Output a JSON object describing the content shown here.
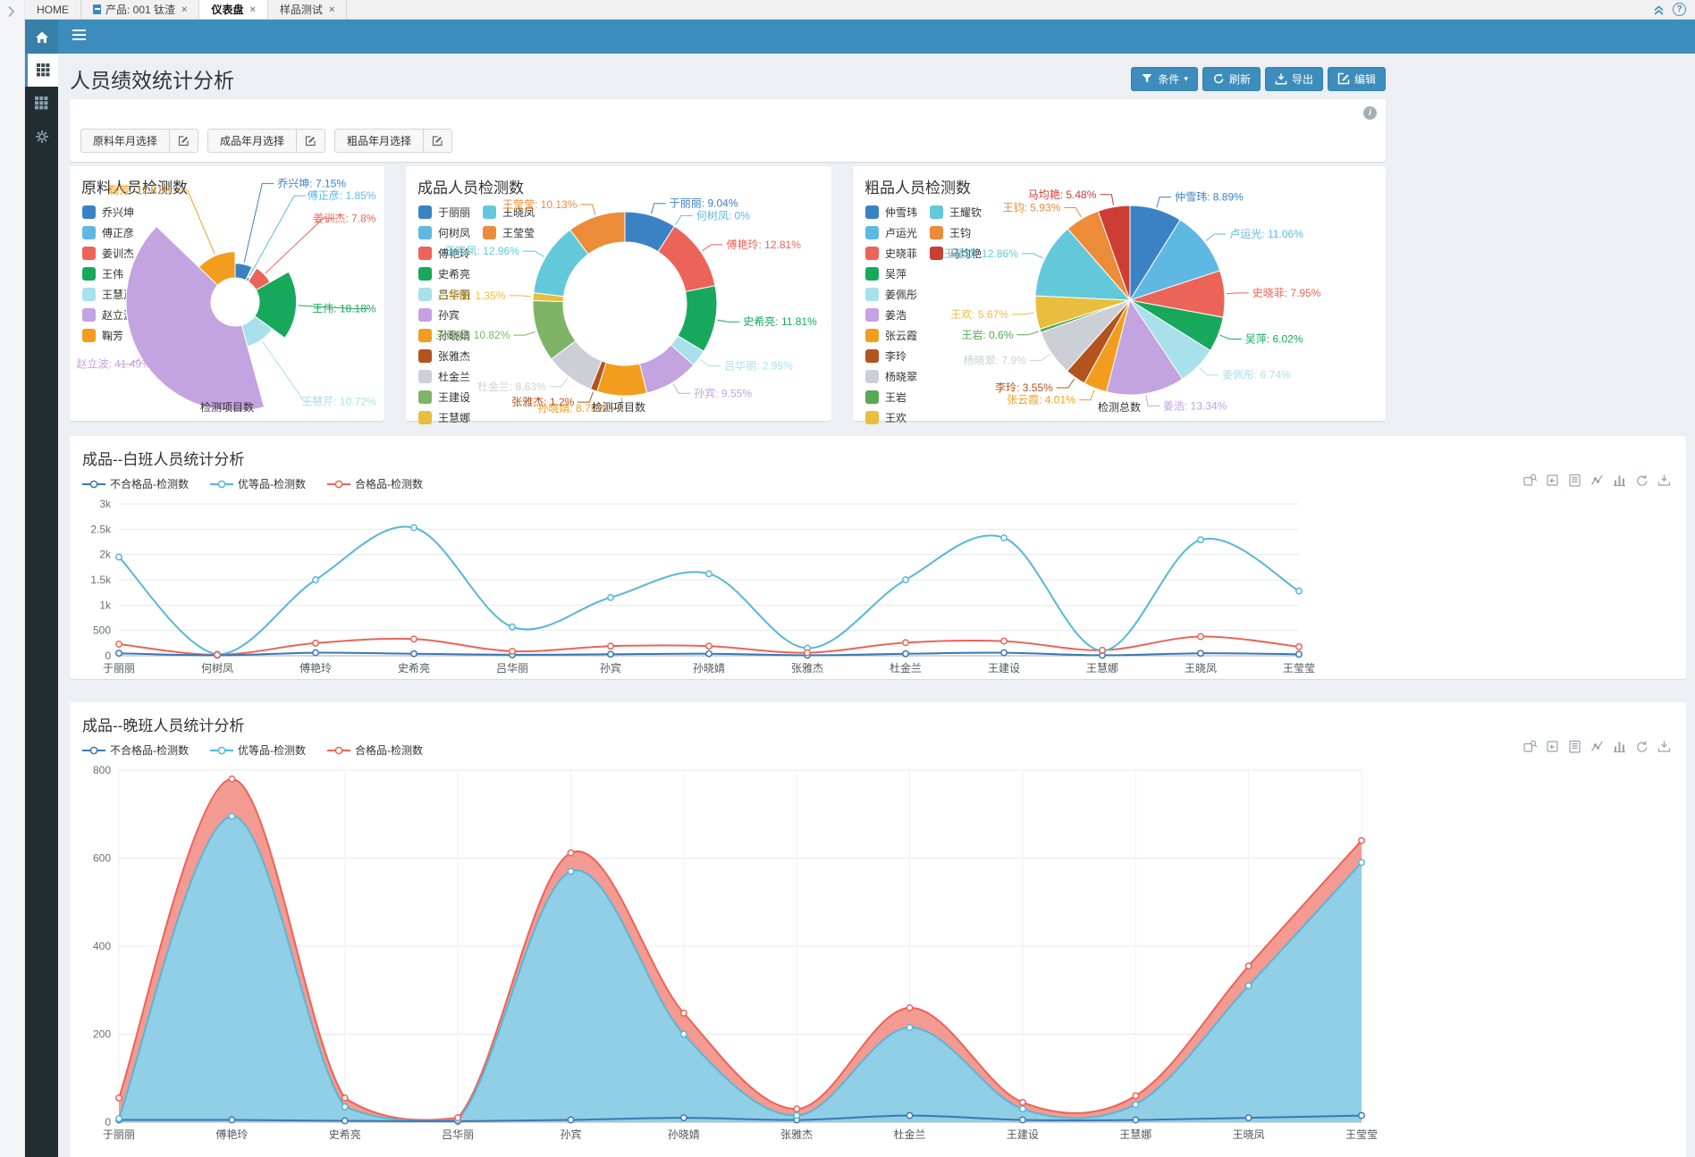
{
  "colors": {
    "accent": "#3c8dbc",
    "header_dark": "#367fa9",
    "sidebar_bg": "#222d32",
    "content_bg": "#ecf0f5"
  },
  "tab_bar": {
    "tabs": [
      {
        "label": "HOME",
        "active": false,
        "closable": false,
        "product_icon": false
      },
      {
        "label": "产品: 001 钛渣",
        "active": false,
        "closable": true,
        "product_icon": true
      },
      {
        "label": "仪表盘",
        "active": true,
        "closable": true,
        "product_icon": false
      },
      {
        "label": "样品测试",
        "active": false,
        "closable": true,
        "product_icon": false
      }
    ],
    "close_glyph": "×",
    "help_glyph": "?"
  },
  "sidebar": {
    "items": [
      {
        "icon": "grid",
        "active": true
      },
      {
        "icon": "grid",
        "active": false
      },
      {
        "icon": "gear",
        "active": false
      }
    ]
  },
  "page": {
    "title": "人员绩效统计分析",
    "actions": [
      {
        "label": "条件",
        "icon": "funnel",
        "caret": "▾",
        "name": "condition-button"
      },
      {
        "label": "刷新",
        "icon": "refresh",
        "name": "refresh-button"
      },
      {
        "label": "导出",
        "icon": "download",
        "name": "export-button"
      },
      {
        "label": "编辑",
        "icon": "edit",
        "name": "edit-button"
      }
    ]
  },
  "filters": {
    "buttons": [
      "原料年月选择",
      "成品年月选择",
      "粗品年月选择"
    ]
  },
  "toolbox_icons": [
    "data-zoom",
    "zoom-reset",
    "data-view",
    "line-type",
    "bar-type",
    "restore",
    "save-image"
  ],
  "chart_data": [
    {
      "type": "pie",
      "variant": "rose",
      "title": "原料人员检测数",
      "axis_label": "检测项目数",
      "series": [
        {
          "name": "乔兴坤",
          "pct": 7.15,
          "color": "#3b82c4"
        },
        {
          "name": "傅正彦",
          "pct": 1.85,
          "color": "#5fb8e2"
        },
        {
          "name": "姜训杰",
          "pct": 7.8,
          "color": "#ec6358"
        },
        {
          "name": "王伟",
          "pct": 18.18,
          "color": "#18a85c"
        },
        {
          "name": "王慧芹",
          "pct": 10.72,
          "color": "#a8e0ec"
        },
        {
          "name": "赵立波",
          "pct": 41.49,
          "color": "#c3a3e0"
        },
        {
          "name": "鞠芳",
          "pct": 12.81,
          "color": "#f29d1e"
        }
      ]
    },
    {
      "type": "pie",
      "variant": "donut",
      "title": "成品人员检测数",
      "axis_label": "检测项目数",
      "series": [
        {
          "name": "于丽丽",
          "pct": 9.04,
          "color": "#3b82c4"
        },
        {
          "name": "何树凤",
          "pct": 0,
          "color": "#5fb8e2"
        },
        {
          "name": "傅艳玲",
          "pct": 12.81,
          "color": "#ec6358"
        },
        {
          "name": "史希亮",
          "pct": 11.81,
          "color": "#18a85c"
        },
        {
          "name": "吕华丽",
          "pct": 2.95,
          "color": "#a8e0ec"
        },
        {
          "name": "孙宾",
          "pct": 9.55,
          "color": "#c3a3e0"
        },
        {
          "name": "孙晓婧",
          "pct": 8.75,
          "color": "#f29d1e"
        },
        {
          "name": "张雅杰",
          "pct": 1.2,
          "color": "#b3531e"
        },
        {
          "name": "杜金兰",
          "pct": 8.63,
          "color": "#ccd0d6"
        },
        {
          "name": "王建设",
          "pct": 10.82,
          "color": "#7fb466"
        },
        {
          "name": "王慧娜",
          "pct": 1.35,
          "color": "#e9bd3e"
        },
        {
          "name": "王晓凤",
          "pct": 12.96,
          "color": "#62c8da"
        },
        {
          "name": "王莹莹",
          "pct": 10.13,
          "color": "#ec8b38"
        }
      ]
    },
    {
      "type": "pie",
      "variant": "pie",
      "title": "粗品人员检测数",
      "axis_label": "检测总数",
      "series": [
        {
          "name": "仲雪玮",
          "pct": 8.89,
          "color": "#3b82c4"
        },
        {
          "name": "卢运光",
          "pct": 11.06,
          "color": "#5fb8e2"
        },
        {
          "name": "史晓菲",
          "pct": 7.95,
          "color": "#ec6358"
        },
        {
          "name": "吴萍",
          "pct": 6.02,
          "color": "#18a85c"
        },
        {
          "name": "姜佩彤",
          "pct": 6.74,
          "color": "#a8e0ec"
        },
        {
          "name": "姜浩",
          "pct": 13.34,
          "color": "#c3a3e0"
        },
        {
          "name": "张云霞",
          "pct": 4.01,
          "color": "#f29d1e"
        },
        {
          "name": "李玲",
          "pct": 3.55,
          "color": "#b3531e"
        },
        {
          "name": "杨晓翠",
          "pct": 7.9,
          "color": "#ccd0d6"
        },
        {
          "name": "王岩",
          "pct": 0.6,
          "color": "#55a855"
        },
        {
          "name": "王欢",
          "pct": 5.67,
          "color": "#e9bd3e"
        },
        {
          "name": "王耀钦",
          "pct": 12.86,
          "color": "#62c8da"
        },
        {
          "name": "王钧",
          "pct": 5.93,
          "color": "#ec8b38"
        },
        {
          "name": "马均艳",
          "pct": 5.48,
          "color": "#cc3e33"
        }
      ]
    },
    {
      "type": "line",
      "title": "成品--白班人员统计分析",
      "categories": [
        "于丽丽",
        "何树凤",
        "傅艳玲",
        "史希亮",
        "吕华丽",
        "孙宾",
        "孙晓婧",
        "张雅杰",
        "杜金兰",
        "王建设",
        "王慧娜",
        "王晓凤",
        "王莹莹"
      ],
      "series": [
        {
          "name": "不合格品-检测数",
          "color": "#3a78b5",
          "fill": null,
          "values": [
            50,
            10,
            60,
            40,
            20,
            30,
            40,
            10,
            40,
            60,
            10,
            50,
            30
          ]
        },
        {
          "name": "优等品-检测数",
          "color": "#56b7d8",
          "fill": null,
          "values": [
            1950,
            30,
            1500,
            2530,
            570,
            1150,
            1620,
            150,
            1500,
            2330,
            100,
            2290,
            1280
          ]
        },
        {
          "name": "合格品-检测数",
          "color": "#ec6358",
          "fill": null,
          "values": [
            230,
            20,
            250,
            330,
            90,
            190,
            190,
            60,
            260,
            290,
            110,
            380,
            180
          ]
        }
      ],
      "ylim": [
        0,
        3000
      ],
      "yticks": [
        "0",
        "500",
        "1k",
        "1.5k",
        "2k",
        "2.5k",
        "3k"
      ]
    },
    {
      "type": "area",
      "title": "成品--晚班人员统计分析",
      "categories": [
        "于丽丽",
        "傅艳玲",
        "史希亮",
        "吕华丽",
        "孙宾",
        "孙晓婧",
        "张雅杰",
        "杜金兰",
        "王建设",
        "王慧娜",
        "王晓凤",
        "王莹莹"
      ],
      "series": [
        {
          "name": "不合格品-检测数",
          "color": "#3a78b5",
          "fill": null,
          "values": [
            5,
            5,
            3,
            2,
            5,
            10,
            5,
            15,
            5,
            5,
            10,
            15
          ]
        },
        {
          "name": "优等品-检测数",
          "color": "#56b7d8",
          "fill": "#8ad2ea",
          "values": [
            8,
            695,
            35,
            5,
            570,
            200,
            15,
            215,
            30,
            40,
            310,
            590
          ]
        },
        {
          "name": "合格品-检测数",
          "color": "#ec6358",
          "fill": "#f2958c",
          "values": [
            55,
            780,
            55,
            10,
            612,
            248,
            30,
            260,
            45,
            60,
            355,
            640
          ]
        }
      ],
      "ylim": [
        0,
        800
      ],
      "yticks": [
        "0",
        "200",
        "400",
        "600",
        "800"
      ]
    }
  ]
}
